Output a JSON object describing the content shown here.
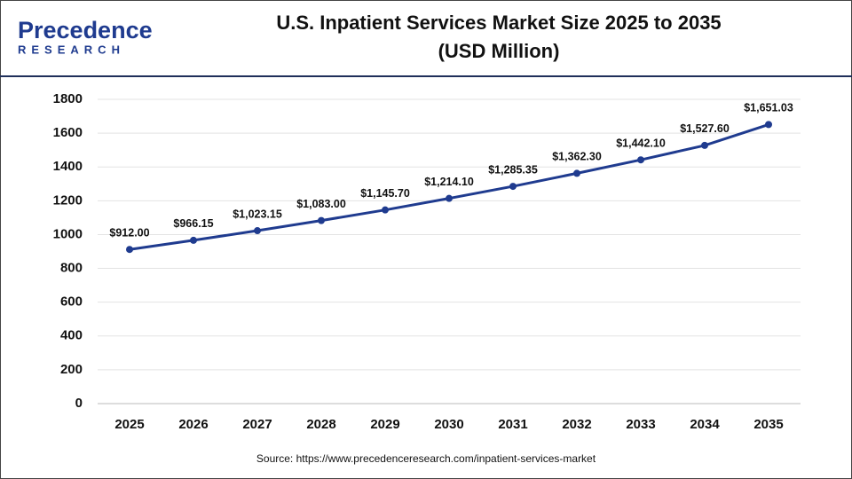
{
  "logo": {
    "name": "Precedence",
    "tagline": "RESEARCH"
  },
  "chart_data": {
    "type": "line",
    "title": "U.S. Inpatient Services Market Size 2025 to 2035",
    "subtitle": "(USD Million)",
    "source": "Source: https://www.precedenceresearch.com/inpatient-services-market",
    "categories": [
      "2025",
      "2026",
      "2027",
      "2028",
      "2029",
      "2030",
      "2031",
      "2032",
      "2033",
      "2034",
      "2035"
    ],
    "series": [
      {
        "name": "U.S. Inpatient Services Market Size",
        "color": "#1f3b8f",
        "values": [
          912.0,
          966.15,
          1023.15,
          1083.0,
          1145.7,
          1214.1,
          1285.35,
          1362.3,
          1442.1,
          1527.6,
          1651.03
        ],
        "value_labels": [
          "$912.00",
          "$966.15",
          "$1,023.15",
          "$1,083.00",
          "$1,145.70",
          "$1,214.10",
          "$1,285.35",
          "$1,362.30",
          "$1,442.10",
          "$1,527.60",
          "$1,651.03"
        ]
      }
    ],
    "ylim": [
      0,
      1800
    ],
    "yticks": [
      0,
      200,
      400,
      600,
      800,
      1000,
      1200,
      1400,
      1600,
      1800
    ],
    "grid": true
  }
}
